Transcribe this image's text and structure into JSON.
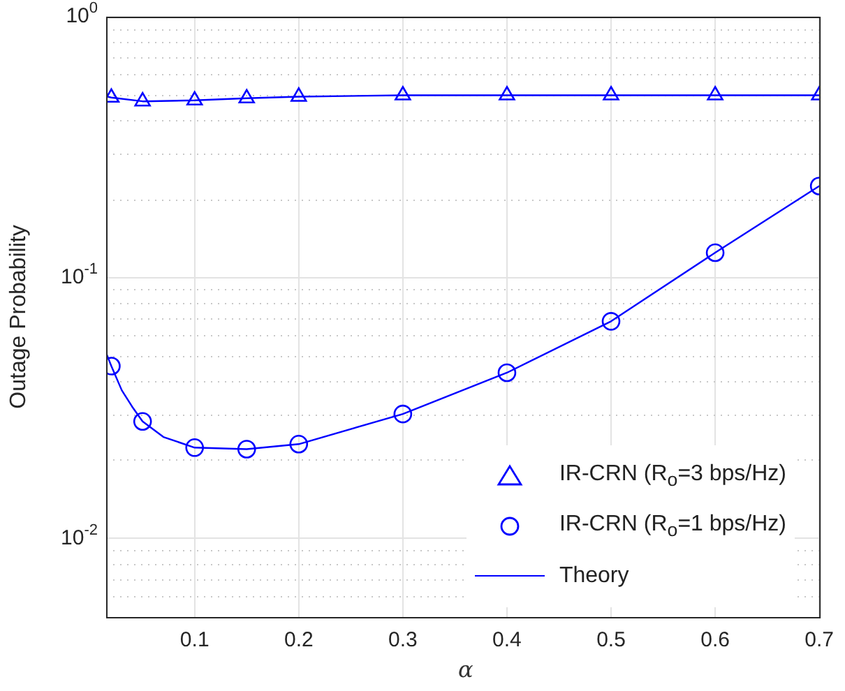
{
  "chart_data": {
    "type": "line",
    "xlabel": "α",
    "ylabel": "Outage Probability",
    "log": "y",
    "grid": true,
    "legend": "bottom right",
    "xlim": [
      0.015,
      0.7
    ],
    "xticks": [
      0.1,
      0.2,
      0.3,
      0.4,
      0.5,
      0.6,
      0.7
    ],
    "ylim": [
      0.005,
      1
    ],
    "yticks": [
      {
        "value": 0.005,
        "label": null
      },
      {
        "value": 0.006,
        "label": null
      },
      {
        "value": 0.007,
        "label": null
      },
      {
        "value": 0.008,
        "label": null
      },
      {
        "value": 0.009,
        "label": null
      },
      {
        "value": 0.01,
        "label": "10$^{-2}$"
      },
      {
        "value": 0.02,
        "label": null
      },
      {
        "value": 0.03,
        "label": null
      },
      {
        "value": 0.04,
        "label": null
      },
      {
        "value": 0.05,
        "label": null
      },
      {
        "value": 0.06,
        "label": null
      },
      {
        "value": 0.07,
        "label": null
      },
      {
        "value": 0.08,
        "label": null
      },
      {
        "value": 0.09,
        "label": null
      },
      {
        "value": 0.1,
        "label": "10$^{-1}$"
      },
      {
        "value": 0.2,
        "label": null
      },
      {
        "value": 0.3,
        "label": null
      },
      {
        "value": 0.4,
        "label": null
      },
      {
        "value": 0.5,
        "label": null
      },
      {
        "value": 0.6,
        "label": null
      },
      {
        "value": 0.7,
        "label": null
      },
      {
        "value": 0.8,
        "label": null
      },
      {
        "value": 0.9,
        "label": null
      },
      {
        "value": 1,
        "label": "10$^{0}$"
      }
    ],
    "series": [
      {
        "name": "IR-CRN (R$_{o}$=3 bps/Hz)",
        "type": "scatter",
        "marker": "triangle",
        "color": "#0000ff",
        "x": [
          0.02,
          0.05,
          0.1,
          0.15,
          0.2,
          0.3,
          0.4,
          0.5,
          0.6,
          0.7
        ],
        "values": [
          0.49,
          0.474,
          0.478,
          0.487,
          0.494,
          0.5,
          0.5,
          0.5,
          0.5,
          0.5
        ]
      },
      {
        "name": "IR-CRN (R$_{o}$=1 bps/Hz)",
        "type": "scatter",
        "marker": "circle",
        "color": "#0000ff",
        "x": [
          0.02,
          0.05,
          0.1,
          0.15,
          0.2,
          0.3,
          0.4,
          0.5,
          0.6,
          0.7
        ],
        "values": [
          0.0458,
          0.0281,
          0.0223,
          0.022,
          0.023,
          0.03,
          0.0432,
          0.068,
          0.1246,
          0.2245
        ]
      },
      {
        "name": "Theory",
        "type": "line",
        "marker": "none",
        "line_style": "solid",
        "color": "#0000ff",
        "x": [
          0.015,
          0.02,
          0.05,
          0.1,
          0.15,
          0.2,
          0.3,
          0.4,
          0.5,
          0.6,
          0.7
        ],
        "values": [
          0.495,
          0.49,
          0.474,
          0.478,
          0.487,
          0.494,
          0.5,
          0.5,
          0.5,
          0.5,
          0.5
        ]
      },
      {
        "type": "line",
        "marker": "none",
        "line_style": "solid",
        "color": "#0000ff",
        "x": [
          0.015,
          0.02,
          0.03,
          0.04,
          0.05,
          0.07,
          0.1,
          0.15,
          0.2,
          0.3,
          0.4,
          0.5,
          0.6,
          0.7
        ],
        "values": [
          0.0514,
          0.0458,
          0.037,
          0.032,
          0.0281,
          0.0245,
          0.0223,
          0.022,
          0.023,
          0.03,
          0.0432,
          0.068,
          0.1246,
          0.2245
        ]
      }
    ]
  }
}
